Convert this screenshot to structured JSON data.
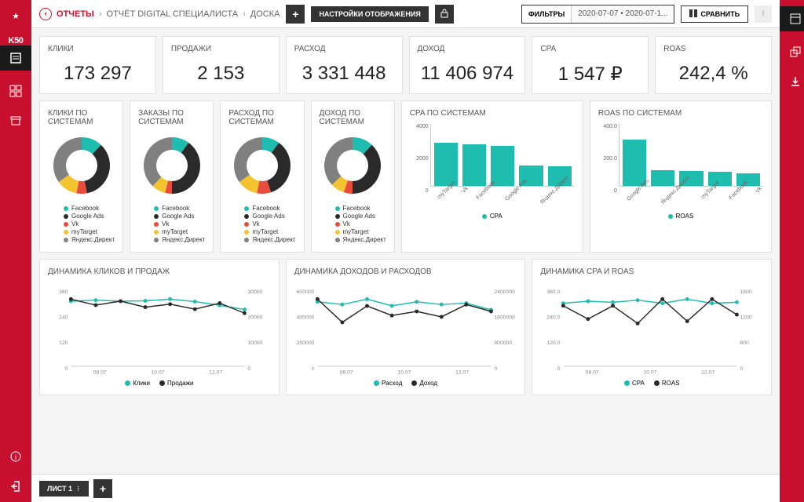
{
  "breadcrumb": {
    "root": "ОТЧЕТЫ",
    "mid": "ОТЧЁТ DIGITAL СПЕЦИАЛИСТА",
    "cur": "ДОСКА"
  },
  "topbar": {
    "settings": "НАСТРОЙКИ ОТОБРАЖЕНИЯ",
    "filters": "ФИЛЬТРЫ",
    "dates": "2020-07-07 • 2020-07-1...",
    "compare": "СРАВНИТЬ"
  },
  "kpis": [
    {
      "label": "КЛИКИ",
      "value": "173 297"
    },
    {
      "label": "ПРОДАЖИ",
      "value": "2 153"
    },
    {
      "label": "РАСХОД",
      "value": "3 331 448"
    },
    {
      "label": "ДОХОД",
      "value": "11 406 974"
    },
    {
      "label": "CPA",
      "value": "1 547 ₽"
    },
    {
      "label": "ROAS",
      "value": "242,4 %"
    }
  ],
  "donut_colors": {
    "Facebook": "#1fbdb0",
    "Google Ads": "#2a2a2a",
    "Vk": "#e84c3d",
    "myTarget": "#f4c430",
    "Яндекс.Директ": "#808080"
  },
  "donut_legend": [
    "Facebook",
    "Google Ads",
    "Vk",
    "myTarget",
    "Яндекс.Директ"
  ],
  "donuts": [
    {
      "title": "КЛИКИ ПО СИСТЕМАМ",
      "slices": [
        12,
        35,
        6,
        12,
        35
      ]
    },
    {
      "title": "ЗАКАЗЫ ПО СИСТЕМАМ",
      "slices": [
        10,
        40,
        4,
        8,
        38
      ]
    },
    {
      "title": "РАСХОД ПО СИСТЕМАМ",
      "slices": [
        10,
        35,
        8,
        12,
        35
      ]
    },
    {
      "title": "ДОХОД ПО СИСТЕМАМ",
      "slices": [
        12,
        38,
        5,
        8,
        37
      ]
    }
  ],
  "barcharts": [
    {
      "title": "CPA ПО СИСТЕМАМ",
      "ymax": 4000,
      "yticks": [
        "4000",
        "2000",
        "0"
      ],
      "legend": "CPA",
      "bars": [
        {
          "l": "myTarget",
          "v": 2800
        },
        {
          "l": "Vk",
          "v": 2700
        },
        {
          "l": "Facebook",
          "v": 2600
        },
        {
          "l": "Google Ads",
          "v": 1300
        },
        {
          "l": "Яндекс.Директ",
          "v": 1250
        }
      ]
    },
    {
      "title": "ROAS ПО СИСТЕМАМ",
      "ymax": 400,
      "yticks": [
        "400.0",
        "200.0",
        "0"
      ],
      "legend": "ROAS",
      "bars": [
        {
          "l": "Google Ads",
          "v": 300
        },
        {
          "l": "Яндекс.Директ",
          "v": 100
        },
        {
          "l": "myTarget",
          "v": 95
        },
        {
          "l": "Facebook",
          "v": 90
        },
        {
          "l": "Vk",
          "v": 80
        }
      ]
    }
  ],
  "lines": [
    {
      "title": "ДИНАМИКА КЛИКОВ И ПРОДАЖ",
      "yleft": [
        "360",
        "240",
        "120",
        "0"
      ],
      "yright": [
        "30000",
        "20000",
        "10000",
        "0"
      ],
      "x": [
        "08.07",
        "10.07",
        "12.07"
      ],
      "series": [
        {
          "name": "Клики",
          "color": "#1fbdb0",
          "pts": [
            300,
            305,
            300,
            302,
            310,
            298,
            280,
            260
          ]
        },
        {
          "name": "Продажи",
          "color": "#2a2a2a",
          "pts": [
            320,
            290,
            310,
            280,
            295,
            270,
            300,
            250
          ]
        }
      ]
    },
    {
      "title": "ДИНАМИКА ДОХОДОВ И РАСХОДОВ",
      "yleft": [
        "600000",
        "400000",
        "200000",
        "0"
      ],
      "yright": [
        "2400000",
        "1600000",
        "800000",
        "0"
      ],
      "x": [
        "08.07",
        "10.07",
        "12.07"
      ],
      "series": [
        {
          "name": "Расход",
          "color": "#1fbdb0",
          "pts": [
            460000,
            440000,
            480000,
            430000,
            460000,
            440000,
            450000,
            400000
          ]
        },
        {
          "name": "Доход",
          "color": "#2a2a2a",
          "pts": [
            470000,
            300000,
            420000,
            350000,
            380000,
            340000,
            430000,
            380000
          ]
        }
      ]
    },
    {
      "title": "ДИНАМИКА CPA И ROAS",
      "yleft": [
        "360.0",
        "240.0",
        "120.0",
        "0"
      ],
      "yright": [
        "1800",
        "1200",
        "600",
        "0"
      ],
      "x": [
        "08.07",
        "10.07",
        "12.07"
      ],
      "series": [
        {
          "name": "CPA",
          "color": "#1fbdb0",
          "pts": [
            290,
            300,
            295,
            305,
            290,
            310,
            290,
            295
          ]
        },
        {
          "name": "ROAS",
          "color": "#2a2a2a",
          "pts": [
            260,
            200,
            260,
            180,
            290,
            190,
            290,
            220
          ]
        }
      ]
    }
  ],
  "sheet": "ЛИСТ 1",
  "colors": {
    "accent": "#1fbdb0",
    "dark": "#2a2a2a"
  }
}
